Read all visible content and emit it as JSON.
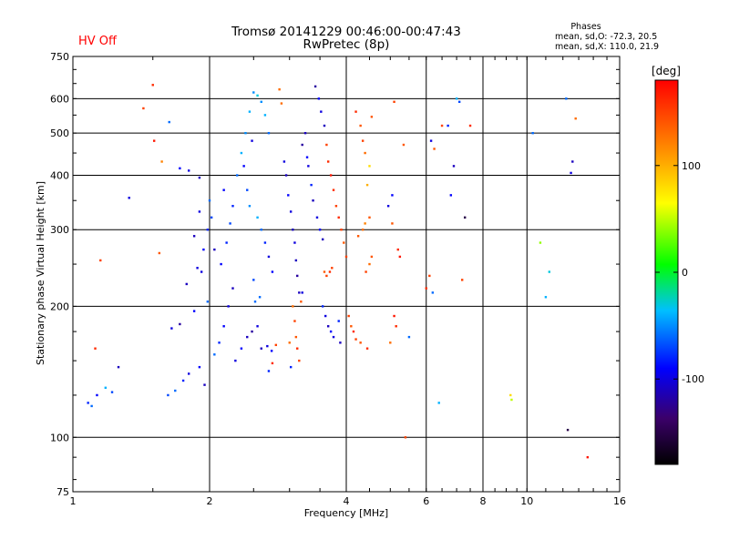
{
  "header": {
    "status": "HV Off",
    "status_color": "#ff0000",
    "title_line1": "Tromsø 20141229 00:46:00-00:47:43",
    "title_line2": "RwPretec (8p)",
    "phases_title": "Phases",
    "phases_line1": "mean, sd,O: -72.3, 20.5",
    "phases_line2": "mean, sd,X: 110.0, 21.9"
  },
  "chart_data": {
    "type": "scatter",
    "xlabel": "Frequency [MHz]",
    "ylabel": "Stationary phase Virtual Height [km]",
    "x_scale": "log",
    "y_scale": "log",
    "xlim": [
      1,
      16
    ],
    "ylim": [
      75,
      750
    ],
    "x_ticks": [
      1,
      2,
      4,
      6,
      8,
      10,
      16
    ],
    "y_ticks": [
      75,
      100,
      200,
      300,
      400,
      500,
      600,
      750
    ],
    "grid_x": [
      2,
      4,
      6,
      8,
      10
    ],
    "grid_y": [
      100,
      200,
      300,
      400,
      500,
      600
    ],
    "grid": true,
    "colorbar": {
      "label": "[deg]",
      "min": -180,
      "max": 180,
      "ticks": [
        100,
        0,
        -100
      ]
    },
    "points": [
      [
        1.08,
        120,
        -80
      ],
      [
        1.1,
        118,
        -60
      ],
      [
        1.13,
        125,
        -90
      ],
      [
        1.18,
        130,
        -40
      ],
      [
        1.22,
        127,
        -70
      ],
      [
        1.15,
        255,
        150
      ],
      [
        1.12,
        160,
        160
      ],
      [
        1.26,
        145,
        -110
      ],
      [
        1.33,
        355,
        -100
      ],
      [
        1.43,
        570,
        150
      ],
      [
        1.5,
        645,
        160
      ],
      [
        1.51,
        480,
        170
      ],
      [
        1.55,
        265,
        140
      ],
      [
        1.57,
        430,
        120
      ],
      [
        1.63,
        530,
        -60
      ],
      [
        1.62,
        125,
        -70
      ],
      [
        1.68,
        128,
        -60
      ],
      [
        1.75,
        135,
        -80
      ],
      [
        1.8,
        140,
        -100
      ],
      [
        1.9,
        145,
        -90
      ],
      [
        1.95,
        132,
        -110
      ],
      [
        1.72,
        415,
        -90
      ],
      [
        1.8,
        410,
        -100
      ],
      [
        1.9,
        395,
        -110
      ],
      [
        1.65,
        178,
        -100
      ],
      [
        1.72,
        182,
        -120
      ],
      [
        1.85,
        195,
        -90
      ],
      [
        1.98,
        205,
        -60
      ],
      [
        1.78,
        225,
        -110
      ],
      [
        1.88,
        245,
        -100
      ],
      [
        1.94,
        270,
        -90
      ],
      [
        1.98,
        300,
        -80
      ],
      [
        2.02,
        320,
        -70
      ],
      [
        2.0,
        350,
        -60
      ],
      [
        1.9,
        330,
        -100
      ],
      [
        1.85,
        290,
        -110
      ],
      [
        2.05,
        155,
        -60
      ],
      [
        2.1,
        165,
        -80
      ],
      [
        2.15,
        180,
        -90
      ],
      [
        2.2,
        200,
        -100
      ],
      [
        2.25,
        220,
        -110
      ],
      [
        2.12,
        250,
        -90
      ],
      [
        2.18,
        280,
        -80
      ],
      [
        2.22,
        310,
        -70
      ],
      [
        2.28,
        150,
        -100
      ],
      [
        2.35,
        160,
        -90
      ],
      [
        2.42,
        170,
        -110
      ],
      [
        2.48,
        175,
        -120
      ],
      [
        2.55,
        180,
        -100
      ],
      [
        2.52,
        205,
        -60
      ],
      [
        2.6,
        160,
        -110
      ],
      [
        2.68,
        162,
        -100
      ],
      [
        2.74,
        158,
        -90
      ],
      [
        2.8,
        163,
        150
      ],
      [
        2.75,
        148,
        160
      ],
      [
        2.7,
        142,
        -80
      ],
      [
        2.3,
        400,
        -60
      ],
      [
        2.35,
        450,
        -40
      ],
      [
        2.4,
        500,
        -50
      ],
      [
        2.45,
        560,
        -40
      ],
      [
        2.5,
        620,
        -50
      ],
      [
        2.55,
        610,
        -30
      ],
      [
        2.6,
        590,
        -50
      ],
      [
        2.65,
        550,
        -40
      ],
      [
        2.7,
        500,
        -60
      ],
      [
        2.48,
        480,
        -100
      ],
      [
        2.38,
        420,
        -90
      ],
      [
        2.42,
        370,
        -70
      ],
      [
        2.45,
        340,
        -50
      ],
      [
        2.55,
        320,
        -40
      ],
      [
        2.6,
        300,
        -60
      ],
      [
        2.65,
        280,
        -80
      ],
      [
        2.7,
        260,
        -100
      ],
      [
        2.75,
        240,
        -90
      ],
      [
        2.5,
        230,
        -70
      ],
      [
        2.58,
        210,
        -60
      ],
      [
        2.85,
        630,
        130
      ],
      [
        2.88,
        585,
        130
      ],
      [
        2.92,
        430,
        -100
      ],
      [
        2.95,
        400,
        -110
      ],
      [
        2.98,
        360,
        -90
      ],
      [
        3.02,
        330,
        -100
      ],
      [
        3.05,
        300,
        -110
      ],
      [
        3.08,
        280,
        -100
      ],
      [
        3.1,
        255,
        -110
      ],
      [
        3.12,
        235,
        -120
      ],
      [
        3.15,
        215,
        -110
      ],
      [
        3.18,
        205,
        140
      ],
      [
        3.05,
        200,
        130
      ],
      [
        3.08,
        185,
        150
      ],
      [
        3.1,
        170,
        140
      ],
      [
        3.12,
        160,
        160
      ],
      [
        3.15,
        150,
        150
      ],
      [
        3.02,
        145,
        -80
      ],
      [
        3.0,
        165,
        130
      ],
      [
        3.2,
        215,
        -100
      ],
      [
        3.25,
        500,
        -110
      ],
      [
        3.2,
        470,
        -120
      ],
      [
        3.28,
        440,
        -90
      ],
      [
        3.3,
        420,
        -100
      ],
      [
        3.35,
        380,
        -80
      ],
      [
        3.38,
        350,
        -110
      ],
      [
        3.45,
        320,
        -100
      ],
      [
        3.5,
        300,
        -90
      ],
      [
        3.55,
        285,
        -110
      ],
      [
        3.42,
        640,
        -120
      ],
      [
        3.48,
        600,
        -90
      ],
      [
        3.52,
        560,
        -100
      ],
      [
        3.58,
        520,
        -110
      ],
      [
        3.62,
        470,
        150
      ],
      [
        3.65,
        430,
        160
      ],
      [
        3.7,
        400,
        170
      ],
      [
        3.75,
        370,
        160
      ],
      [
        3.8,
        340,
        150
      ],
      [
        3.85,
        320,
        160
      ],
      [
        3.9,
        300,
        150
      ],
      [
        3.95,
        280,
        140
      ],
      [
        4.0,
        260,
        150
      ],
      [
        3.58,
        240,
        140
      ],
      [
        3.62,
        235,
        150
      ],
      [
        3.68,
        240,
        160
      ],
      [
        3.72,
        245,
        150
      ],
      [
        3.55,
        200,
        -80
      ],
      [
        3.6,
        190,
        -100
      ],
      [
        3.65,
        180,
        -110
      ],
      [
        3.7,
        175,
        -90
      ],
      [
        3.75,
        170,
        -100
      ],
      [
        3.85,
        185,
        -80
      ],
      [
        3.88,
        165,
        -110
      ],
      [
        4.05,
        190,
        150
      ],
      [
        4.1,
        180,
        140
      ],
      [
        4.15,
        175,
        160
      ],
      [
        4.2,
        168,
        150
      ],
      [
        4.3,
        165,
        140
      ],
      [
        4.45,
        160,
        160
      ],
      [
        4.25,
        290,
        140
      ],
      [
        4.35,
        300,
        130
      ],
      [
        4.4,
        310,
        120
      ],
      [
        4.5,
        320,
        140
      ],
      [
        4.42,
        240,
        150
      ],
      [
        4.5,
        250,
        130
      ],
      [
        4.55,
        260,
        140
      ],
      [
        4.45,
        380,
        100
      ],
      [
        4.5,
        420,
        80
      ],
      [
        4.4,
        450,
        130
      ],
      [
        4.35,
        480,
        150
      ],
      [
        4.3,
        520,
        140
      ],
      [
        4.2,
        560,
        160
      ],
      [
        4.55,
        545,
        140
      ],
      [
        4.95,
        340,
        -100
      ],
      [
        5.05,
        310,
        140
      ],
      [
        5.1,
        590,
        150
      ],
      [
        5.1,
        190,
        170
      ],
      [
        5.15,
        180,
        160
      ],
      [
        5.05,
        360,
        -90
      ],
      [
        5.2,
        270,
        160
      ],
      [
        5.25,
        260,
        170
      ],
      [
        5.4,
        100,
        150
      ],
      [
        5.35,
        470,
        140
      ],
      [
        5.0,
        165,
        130
      ],
      [
        6.0,
        220,
        160
      ],
      [
        6.1,
        235,
        150
      ],
      [
        6.2,
        215,
        -60
      ],
      [
        6.15,
        480,
        -100
      ],
      [
        6.25,
        460,
        140
      ],
      [
        6.5,
        520,
        150
      ],
      [
        6.8,
        360,
        -90
      ],
      [
        7.0,
        600,
        -40
      ],
      [
        7.1,
        590,
        -70
      ],
      [
        6.9,
        420,
        -110
      ],
      [
        7.3,
        320,
        -150
      ],
      [
        7.5,
        520,
        160
      ],
      [
        6.7,
        520,
        -80
      ],
      [
        7.2,
        230,
        150
      ],
      [
        6.4,
        120,
        -40
      ],
      [
        5.5,
        170,
        -60
      ],
      [
        9.2,
        125,
        80
      ],
      [
        9.25,
        122,
        50
      ],
      [
        10.3,
        500,
        -60
      ],
      [
        10.7,
        280,
        40
      ],
      [
        11.0,
        210,
        -40
      ],
      [
        11.2,
        240,
        -30
      ],
      [
        12.2,
        600,
        -60
      ],
      [
        12.5,
        405,
        -100
      ],
      [
        12.6,
        430,
        -110
      ],
      [
        12.3,
        104,
        -150
      ],
      [
        12.8,
        540,
        130
      ],
      [
        13.6,
        90,
        170
      ],
      [
        2.15,
        370,
        -90
      ],
      [
        2.25,
        340,
        -80
      ],
      [
        1.92,
        240,
        -100
      ],
      [
        2.05,
        270,
        -110
      ]
    ]
  }
}
